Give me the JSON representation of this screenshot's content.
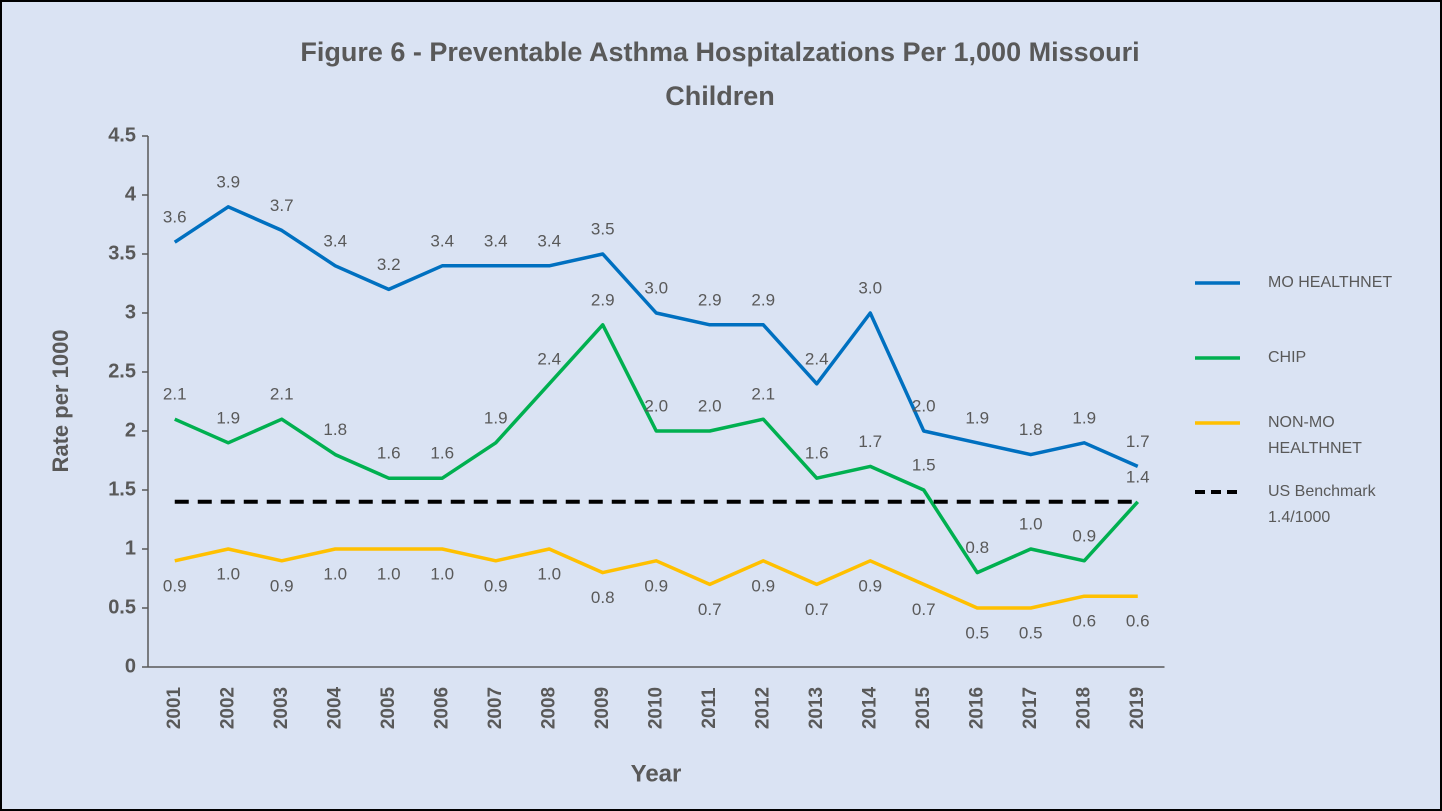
{
  "chart_data": {
    "type": "line",
    "title": "Figure 6 - Preventable Asthma Hospitalzations Per 1,000 Missouri Children",
    "x_label": "Year",
    "y_label": "Rate per 1000",
    "categories": [
      "2001",
      "2002",
      "2003",
      "2004",
      "2005",
      "2006",
      "2007",
      "2008",
      "2009",
      "2010",
      "2011",
      "2012",
      "2013",
      "2014",
      "2015",
      "2016",
      "2017",
      "2018",
      "2019"
    ],
    "ylim": [
      0,
      4.5
    ],
    "yticks": [
      0,
      0.5,
      1,
      1.5,
      2,
      2.5,
      3,
      3.5,
      4,
      4.5
    ],
    "grid": false,
    "legend": "right",
    "series": [
      {
        "name": "MO HEALTHNET",
        "color": "#0070c0",
        "values": [
          3.6,
          3.9,
          3.7,
          3.4,
          3.2,
          3.4,
          3.4,
          3.4,
          3.5,
          3.0,
          2.9,
          2.9,
          2.4,
          3.0,
          2.0,
          1.9,
          1.8,
          1.9,
          1.7
        ],
        "value_labels": [
          "3.6",
          "3.9",
          "3.7",
          "3.4",
          "3.2",
          "3.4",
          "3.4",
          "3.4",
          "3.5",
          "3.0",
          "2.9",
          "2.9",
          "2.4",
          "3.0",
          "2.0",
          "1.9",
          "1.8",
          "1.9",
          "1.7"
        ]
      },
      {
        "name": "CHIP",
        "color": "#00b050",
        "values": [
          2.1,
          1.9,
          2.1,
          1.8,
          1.6,
          1.6,
          1.9,
          2.4,
          2.9,
          2.0,
          2.0,
          2.1,
          1.6,
          1.7,
          1.5,
          0.8,
          1.0,
          0.9,
          1.4
        ],
        "value_labels": [
          "2.1",
          "1.9",
          "2.1",
          "1.8",
          "1.6",
          "1.6",
          "1.9",
          "2.4",
          "2.9",
          "2.0",
          "2.0",
          "2.1",
          "1.6",
          "1.7",
          "1.5",
          "0.8",
          "1.0",
          "0.9",
          "1.4"
        ]
      },
      {
        "name": "NON-MO HEALTHNET",
        "color": "#ffc000",
        "values": [
          0.9,
          1.0,
          0.9,
          1.0,
          1.0,
          1.0,
          0.9,
          1.0,
          0.8,
          0.9,
          0.7,
          0.9,
          0.7,
          0.9,
          0.7,
          0.5,
          0.5,
          0.6,
          0.6
        ],
        "value_labels": [
          "0.9",
          "1.0",
          "0.9",
          "1.0",
          "1.0",
          "1.0",
          "0.9",
          "1.0",
          "0.8",
          "0.9",
          "0.7",
          "0.9",
          "0.7",
          "0.9",
          "0.7",
          "0.5",
          "0.5",
          "0.6",
          "0.6"
        ]
      },
      {
        "name": "US Benchmark 1.4/1000",
        "color": "#000000",
        "dashed": true,
        "values": [
          1.4,
          1.4,
          1.4,
          1.4,
          1.4,
          1.4,
          1.4,
          1.4,
          1.4,
          1.4,
          1.4,
          1.4,
          1.4,
          1.4,
          1.4,
          1.4,
          1.4,
          1.4,
          1.4
        ]
      }
    ]
  }
}
